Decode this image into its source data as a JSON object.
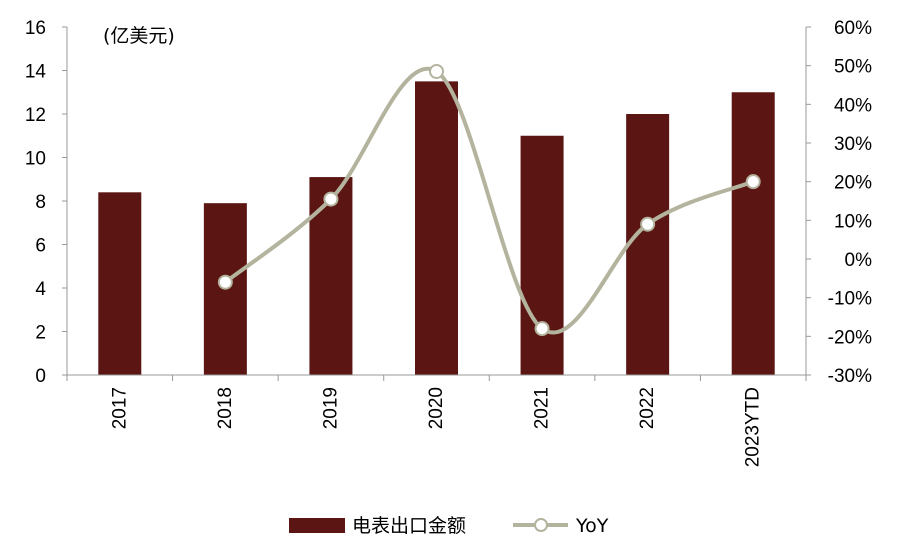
{
  "chart_data": {
    "type": "bar",
    "categories": [
      "2017",
      "2018",
      "2019",
      "2020",
      "2021",
      "2022",
      "2023YTD"
    ],
    "series": [
      {
        "name": "电表出口金额",
        "type": "bar",
        "axis": "left",
        "color": "#5b1513",
        "values": [
          8.4,
          7.9,
          9.1,
          13.5,
          11.0,
          12.0,
          13.0
        ]
      },
      {
        "name": "YoY",
        "type": "line",
        "axis": "right",
        "color": "#b4b49e",
        "marker": "circle",
        "values": [
          null,
          -6.0,
          15.5,
          48.5,
          -18.0,
          9.0,
          20.0
        ]
      }
    ],
    "y_left": {
      "unit_label": "(亿美元)",
      "min": 0,
      "max": 16,
      "step": 2,
      "ticks": [
        "0",
        "2",
        "4",
        "6",
        "8",
        "10",
        "12",
        "14",
        "16"
      ]
    },
    "y_right": {
      "min": -30,
      "max": 60,
      "step": 10,
      "ticks": [
        "-30%",
        "-20%",
        "-10%",
        "0%",
        "10%",
        "20%",
        "30%",
        "40%",
        "50%",
        "60%"
      ]
    },
    "legend": {
      "position": "bottom"
    },
    "grid": false
  }
}
